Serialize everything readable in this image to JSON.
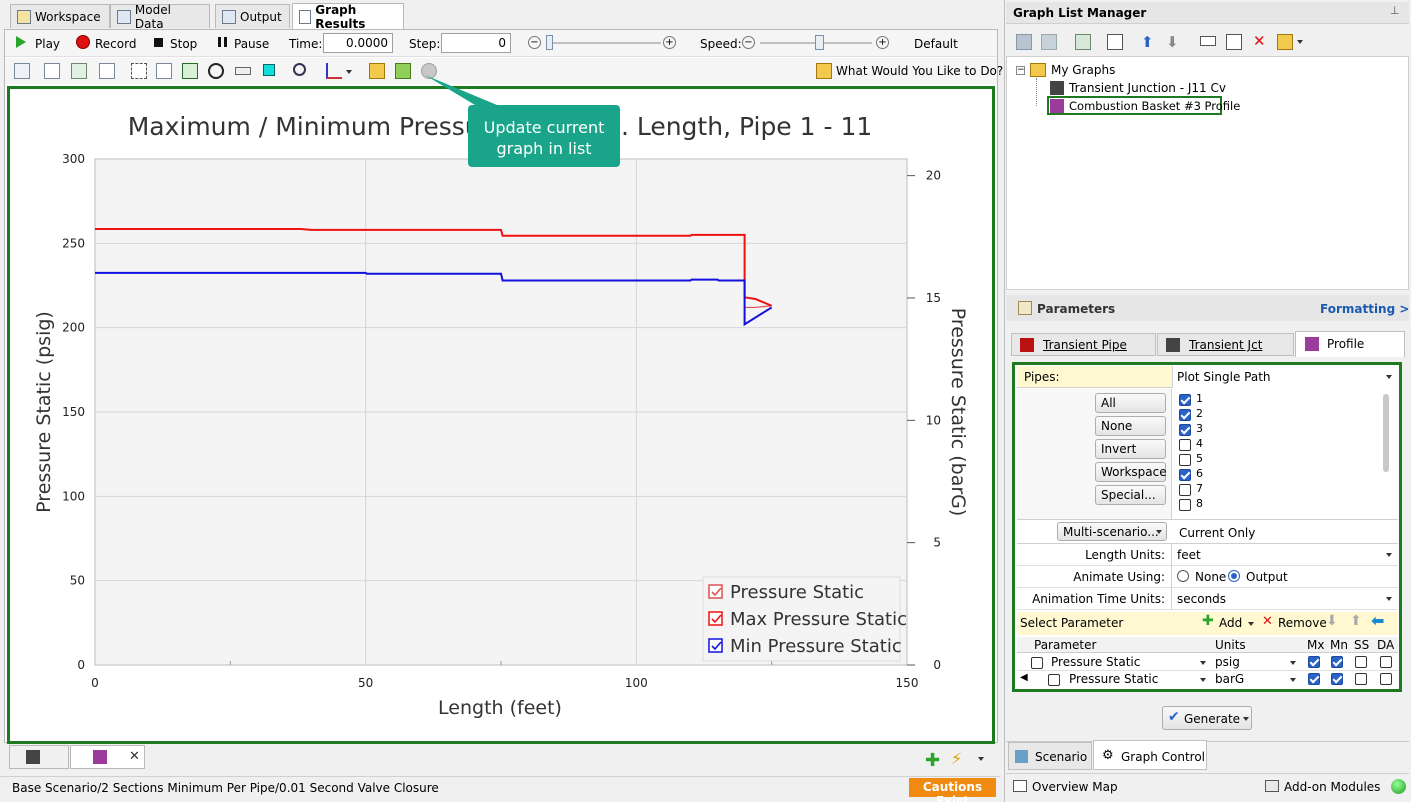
{
  "tabs": [
    {
      "label": "Workspace"
    },
    {
      "label": "Model Data"
    },
    {
      "label": "Output"
    },
    {
      "label": "Graph Results"
    }
  ],
  "toolbar": {
    "play": "Play",
    "record": "Record",
    "stop": "Stop",
    "pause": "Pause",
    "time_label": "Time:",
    "time_value": "0.0000",
    "step_label": "Step:",
    "step_value": "0",
    "speed_label": "Speed:",
    "default_label": "Default",
    "help": "What Would You Like to Do?"
  },
  "tooltip": {
    "text_line1": "Update current",
    "text_line2": "graph in list"
  },
  "chart_data": {
    "type": "line",
    "title": "Maximum / Minimum Pressure Static vs. Length, Pipe 1 - 11",
    "xlabel": "Length (feet)",
    "ylabel": "Pressure Static (psig)",
    "y2label": "Pressure Static (barG)",
    "xlim": [
      0,
      150
    ],
    "ylim": [
      0,
      300
    ],
    "y2lim": [
      0,
      20.68
    ],
    "xticks": [
      "0",
      "50",
      "100",
      "150"
    ],
    "yticks": [
      "0",
      "50",
      "100",
      "150",
      "200",
      "250",
      "300"
    ],
    "y2ticks": [
      "0",
      "5",
      "10",
      "15",
      "20"
    ],
    "series": [
      {
        "name": "Pressure Static",
        "color": "#e05050",
        "x": [
          120,
          122,
          125
        ],
        "y": [
          212,
          212,
          213
        ]
      },
      {
        "name": "Max Pressure Static",
        "color": "#ee1111",
        "x": [
          0,
          38,
          40,
          75,
          75.3,
          110,
          110.2,
          120,
          120,
          122,
          125
        ],
        "y": [
          258.5,
          258.5,
          258,
          258,
          254.5,
          254.5,
          255,
          255,
          218,
          217,
          213
        ]
      },
      {
        "name": "Min Pressure Static",
        "color": "#1111dd",
        "x": [
          0,
          50,
          50.2,
          75,
          75.3,
          110,
          110.2,
          115,
          115.2,
          120,
          120,
          125
        ],
        "y": [
          232.5,
          232.5,
          232,
          232,
          228,
          228,
          228.5,
          228.5,
          228,
          228,
          202,
          212
        ]
      }
    ],
    "legend_position": "bottom-right",
    "grid": true
  },
  "bottom_tabs": {
    "status_path": "Base Scenario/2 Sections Minimum Per Pipe/0.01 Second Valve Closure",
    "cautions": "Cautions Exist"
  },
  "graph_list": {
    "title": "Graph List Manager",
    "root": "My Graphs",
    "items": [
      "Transient Junction - J11 Cv",
      "Combustion Basket #3 Profile"
    ]
  },
  "params": {
    "title": "Parameters",
    "formatting": "Formatting >",
    "tabs": [
      "Transient Pipe",
      "Transient Jct",
      "Profile"
    ],
    "pipes_label": "Pipes:",
    "pipes_value": "Plot Single Path",
    "buttons": [
      "All",
      "None",
      "Invert",
      "Workspace",
      "Special..."
    ],
    "pipe_list": [
      {
        "n": "1",
        "on": true
      },
      {
        "n": "2",
        "on": true
      },
      {
        "n": "3",
        "on": true
      },
      {
        "n": "4",
        "on": false
      },
      {
        "n": "5",
        "on": false
      },
      {
        "n": "6",
        "on": true
      },
      {
        "n": "7",
        "on": false
      },
      {
        "n": "8",
        "on": false
      }
    ],
    "multi_scenario": "Multi-scenario...",
    "current_only": "Current Only",
    "length_units_label": "Length Units:",
    "length_units": "feet",
    "animate_label": "Animate Using:",
    "animate_none": "None",
    "animate_output": "Output",
    "anim_time_label": "Animation Time Units:",
    "anim_time": "seconds",
    "select_param": "Select Parameter",
    "add": "Add",
    "remove": "Remove",
    "grid_headers": {
      "parameter": "Parameter",
      "units": "Units",
      "mx": "Mx",
      "mn": "Mn",
      "ss": "SS",
      "da": "DA"
    },
    "grid_rows": [
      {
        "param": "Pressure Static",
        "units": "psig"
      },
      {
        "param": "Pressure Static",
        "units": "barG"
      }
    ],
    "generate": "Generate"
  },
  "bottom_right": {
    "scenario": "Scenario",
    "graph_control": "Graph Control",
    "overview": "Overview Map",
    "addon": "Add-on Modules"
  }
}
